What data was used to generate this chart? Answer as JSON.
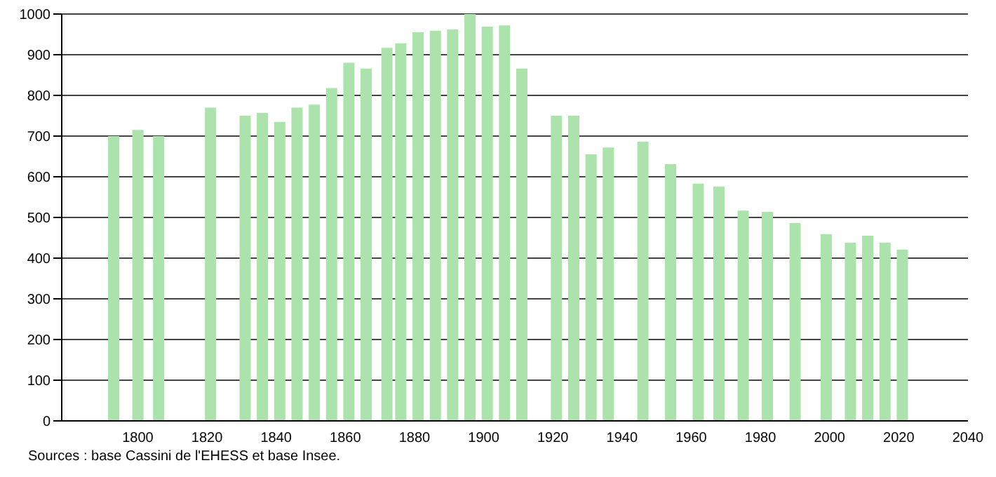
{
  "chart_data": {
    "type": "bar",
    "x": [
      1793,
      1800,
      1806,
      1821,
      1831,
      1836,
      1841,
      1846,
      1851,
      1856,
      1861,
      1866,
      1872,
      1876,
      1881,
      1886,
      1891,
      1896,
      1901,
      1906,
      1911,
      1921,
      1926,
      1931,
      1936,
      1946,
      1954,
      1962,
      1968,
      1975,
      1982,
      1990,
      1999,
      2006,
      2011,
      2016,
      2021
    ],
    "values": [
      700,
      715,
      700,
      770,
      750,
      757,
      735,
      770,
      777,
      818,
      880,
      866,
      917,
      928,
      955,
      959,
      962,
      1000,
      969,
      972,
      866,
      750,
      750,
      655,
      672,
      686,
      631,
      583,
      576,
      517,
      514,
      486,
      459,
      438,
      455,
      438,
      421
    ],
    "color": "#ace3ac",
    "xlim": [
      1778,
      2040
    ],
    "xticks": [
      1800,
      1820,
      1840,
      1860,
      1880,
      1900,
      1920,
      1940,
      1960,
      1980,
      2000,
      2020,
      2040
    ],
    "ylim": [
      0,
      1000
    ],
    "yticks": [
      0,
      100,
      200,
      300,
      400,
      500,
      600,
      700,
      800,
      900,
      1000
    ],
    "grid": "y",
    "annotations": [
      "Sources : base Cassini de l'EHESS et base Insee."
    ]
  }
}
